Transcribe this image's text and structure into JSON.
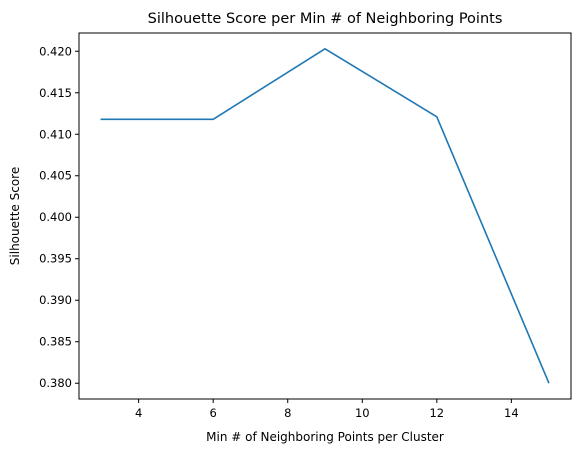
{
  "chart_data": {
    "type": "line",
    "title": "Silhouette Score per Min # of Neighboring Points",
    "xlabel": "Min # of Neighboring Points per Cluster",
    "ylabel": "Silhouette Score",
    "xlim": [
      2.4,
      15.6
    ],
    "ylim": [
      0.3781,
      0.4222
    ],
    "xticks": [
      4,
      6,
      8,
      10,
      12,
      14
    ],
    "xtick_labels": [
      "4",
      "6",
      "8",
      "10",
      "12",
      "14"
    ],
    "yticks": [
      0.38,
      0.385,
      0.39,
      0.395,
      0.4,
      0.405,
      0.41,
      0.415,
      0.42
    ],
    "ytick_labels": [
      "0.380",
      "0.385",
      "0.390",
      "0.395",
      "0.400",
      "0.405",
      "0.410",
      "0.415",
      "0.420"
    ],
    "grid": false,
    "line_color": "#1f77b4",
    "series": [
      {
        "x": [
          3,
          6,
          9,
          12,
          15
        ],
        "values": [
          0.4118,
          0.4118,
          0.4203,
          0.4121,
          0.3801
        ]
      }
    ]
  }
}
